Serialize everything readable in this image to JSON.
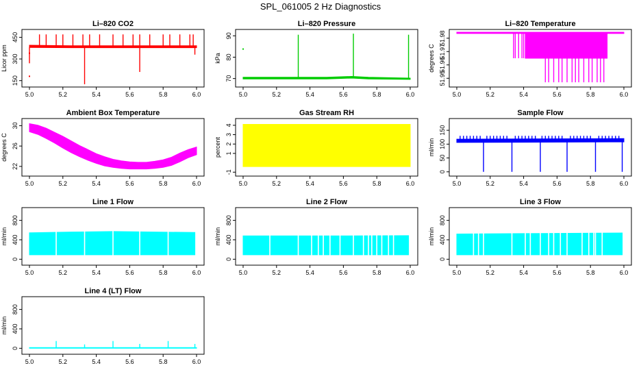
{
  "page": {
    "title": "SPL_061005  2 Hz Diagnostics"
  },
  "chart_data": [
    {
      "id": "co2",
      "type": "line",
      "title": "Li–820 CO2",
      "ylabel": "Licor ppm",
      "color": "#ff0000",
      "xlim": [
        5.0,
        6.0
      ],
      "ylim": [
        120,
        490
      ],
      "xticks": [
        "5.0",
        "5.2",
        "5.4",
        "5.6",
        "5.8",
        "6.0"
      ],
      "yticks": [
        "150",
        "300",
        "450"
      ],
      "series": [
        {
          "name": "baseline",
          "kind": "band",
          "x": [
            5.0,
            5.25,
            5.5,
            5.75,
            6.0
          ],
          "ymin": [
            380,
            378,
            378,
            378,
            378
          ],
          "ymax": [
            395,
            392,
            392,
            392,
            392
          ]
        },
        {
          "name": "spikes-up",
          "kind": "spikes",
          "base": 390,
          "x": [
            5.06,
            5.1,
            5.16,
            5.2,
            5.26,
            5.32,
            5.36,
            5.42,
            5.5,
            5.56,
            5.62,
            5.66,
            5.72,
            5.8,
            5.84,
            5.9,
            5.96,
            5.98
          ],
          "y": [
            470,
            470,
            470,
            470,
            470,
            470,
            470,
            470,
            470,
            470,
            470,
            470,
            470,
            470,
            470,
            470,
            470,
            470
          ]
        },
        {
          "name": "spikes-down",
          "kind": "spikes",
          "base": 380,
          "x": [
            5.0,
            5.33,
            5.66,
            5.99
          ],
          "y": [
            270,
            125,
            210,
            330
          ]
        },
        {
          "name": "outliers",
          "kind": "points",
          "x": [
            5.0,
            5.0
          ],
          "y": [
            180,
            340
          ]
        }
      ]
    },
    {
      "id": "pressure",
      "type": "line",
      "title": "Li–820 Pressure",
      "ylabel": "kPa",
      "color": "#00cc00",
      "xlim": [
        5.0,
        6.0
      ],
      "ylim": [
        67,
        92
      ],
      "xticks": [
        "5.0",
        "5.2",
        "5.4",
        "5.6",
        "5.8",
        "6.0"
      ],
      "yticks": [
        "70",
        "80",
        "90"
      ],
      "series": [
        {
          "name": "baseline",
          "kind": "band",
          "x": [
            5.0,
            5.25,
            5.5,
            5.65,
            5.75,
            6.0
          ],
          "ymin": [
            69.8,
            69.8,
            69.8,
            70.2,
            69.8,
            69.6
          ],
          "ymax": [
            70.6,
            70.6,
            70.6,
            71.0,
            70.6,
            70.2
          ]
        },
        {
          "name": "spikes-up",
          "kind": "spikes",
          "base": 70.3,
          "x": [
            5.33,
            5.66,
            5.99
          ],
          "y": [
            90.5,
            91.0,
            90.5
          ]
        },
        {
          "name": "outliers",
          "kind": "points",
          "x": [
            5.0
          ],
          "y": [
            83.8
          ]
        }
      ]
    },
    {
      "id": "temperature",
      "type": "line",
      "title": "Li–820 Temperature",
      "ylabel": "degrees C",
      "color": "#ff00ff",
      "xlim": [
        5.0,
        6.0
      ],
      "ylim": [
        51.945,
        51.985
      ],
      "xticks": [
        "5.0",
        "5.2",
        "5.4",
        "5.6",
        "5.8",
        "6.0"
      ],
      "yticks": [
        "51.95",
        "51.96",
        "51.97",
        "51.98"
      ],
      "series": [
        {
          "name": "baseline",
          "kind": "band",
          "x": [
            5.0,
            6.0
          ],
          "ymin": [
            51.9835,
            51.9835
          ],
          "ymax": [
            51.9845,
            51.9845
          ]
        },
        {
          "name": "block",
          "kind": "band",
          "x": [
            5.41,
            5.9
          ],
          "ymin": [
            51.965,
            51.965
          ],
          "ymax": [
            51.984,
            51.984
          ]
        },
        {
          "name": "drops-mid",
          "kind": "spikes",
          "base": 51.984,
          "x": [
            5.34,
            5.35,
            5.37,
            5.39,
            5.4
          ],
          "y": [
            51.965,
            51.965,
            51.965,
            51.965,
            51.965
          ]
        },
        {
          "name": "drops-deep",
          "kind": "spikes",
          "base": 51.965,
          "x": [
            5.53,
            5.55,
            5.58,
            5.61,
            5.63,
            5.66,
            5.69,
            5.71,
            5.73,
            5.76,
            5.79,
            5.81,
            5.84,
            5.86,
            5.88
          ],
          "y": [
            51.947,
            51.947,
            51.947,
            51.947,
            51.947,
            51.947,
            51.947,
            51.947,
            51.947,
            51.947,
            51.947,
            51.947,
            51.947,
            51.947,
            51.947
          ]
        }
      ]
    },
    {
      "id": "ambient",
      "type": "line",
      "title": "Ambient Box Temperature",
      "ylabel": "degrees C",
      "color": "#ff00ff",
      "xlim": [
        5.0,
        6.0
      ],
      "ylim": [
        20.5,
        31.0
      ],
      "xticks": [
        "5.0",
        "5.2",
        "5.4",
        "5.6",
        "5.8",
        "6.0"
      ],
      "yticks": [
        "22",
        "26",
        "30"
      ],
      "series": [
        {
          "name": "band",
          "kind": "band",
          "x": [
            5.0,
            5.05,
            5.1,
            5.15,
            5.2,
            5.25,
            5.3,
            5.35,
            5.4,
            5.45,
            5.5,
            5.55,
            5.6,
            5.65,
            5.7,
            5.75,
            5.8,
            5.85,
            5.9,
            5.95,
            6.0
          ],
          "ymin": [
            28.8,
            28.3,
            27.5,
            26.6,
            25.6,
            24.7,
            23.9,
            23.2,
            22.6,
            22.1,
            21.8,
            21.6,
            21.5,
            21.5,
            21.5,
            21.6,
            21.8,
            22.2,
            22.9,
            23.7,
            24.3
          ],
          "ymax": [
            30.4,
            30.1,
            29.5,
            28.7,
            27.9,
            27.0,
            26.1,
            25.3,
            24.5,
            23.9,
            23.4,
            23.1,
            22.9,
            22.8,
            22.8,
            23.0,
            23.3,
            23.8,
            24.6,
            25.3,
            25.8
          ]
        }
      ]
    },
    {
      "id": "rh",
      "type": "line",
      "title": "Gas Stream RH",
      "ylabel": "percent",
      "color": "#ffff00",
      "xlim": [
        5.0,
        6.0
      ],
      "ylim": [
        -1.2,
        4.5
      ],
      "xticks": [
        "5.0",
        "5.2",
        "5.4",
        "5.6",
        "5.8",
        "6.0"
      ],
      "yticks": [
        "-1",
        "1",
        "2",
        "3",
        "4"
      ],
      "series": [
        {
          "name": "band",
          "kind": "band",
          "x": [
            5.0,
            6.0
          ],
          "ymin": [
            -0.4,
            -0.4
          ],
          "ymax": [
            4.1,
            4.1
          ]
        }
      ]
    },
    {
      "id": "sample",
      "type": "line",
      "title": "Sample Flow",
      "ylabel": "ml/min",
      "color": "#0000ff",
      "xlim": [
        5.0,
        6.0
      ],
      "ylim": [
        -8,
        185
      ],
      "xticks": [
        "5.0",
        "5.2",
        "5.4",
        "5.6",
        "5.8",
        "6.0"
      ],
      "yticks": [
        "0",
        "50",
        "100",
        "150"
      ],
      "series": [
        {
          "name": "band",
          "kind": "band",
          "x": [
            5.0,
            6.0
          ],
          "ymin": [
            106,
            108
          ],
          "ymax": [
            118,
            120
          ]
        },
        {
          "name": "spikes-up",
          "kind": "spikes",
          "base": 118,
          "x": [
            5.02,
            5.04,
            5.06,
            5.08,
            5.1,
            5.12,
            5.14,
            5.18,
            5.2,
            5.22,
            5.24,
            5.26,
            5.28,
            5.3,
            5.35,
            5.37,
            5.39,
            5.41,
            5.43,
            5.45,
            5.47,
            5.51,
            5.53,
            5.55,
            5.57,
            5.59,
            5.61,
            5.63,
            5.68,
            5.7,
            5.72,
            5.74,
            5.76,
            5.78,
            5.8,
            5.85,
            5.87,
            5.89,
            5.91,
            5.93,
            5.95,
            5.97
          ],
          "y": [
            130,
            130,
            130,
            130,
            130,
            130,
            130,
            130,
            130,
            130,
            130,
            130,
            130,
            130,
            130,
            130,
            130,
            130,
            130,
            130,
            130,
            130,
            130,
            130,
            130,
            130,
            130,
            130,
            130,
            130,
            130,
            130,
            130,
            130,
            130,
            130,
            130,
            130,
            130,
            130,
            130,
            130
          ]
        },
        {
          "name": "spikes-down",
          "kind": "spikes",
          "base": 110,
          "x": [
            5.16,
            5.33,
            5.5,
            5.66,
            5.83,
            5.99
          ],
          "y": [
            0,
            0,
            0,
            0,
            0,
            0
          ]
        }
      ]
    },
    {
      "id": "line1",
      "type": "line",
      "title": "Line 1 Flow",
      "ylabel": "ml/min",
      "color": "#00ffff",
      "xlim": [
        5.0,
        6.0
      ],
      "ylim": [
        -80,
        1020
      ],
      "xticks": [
        "5.0",
        "5.2",
        "5.4",
        "5.6",
        "5.8",
        "6.0"
      ],
      "yticks": [
        "0",
        "400",
        "800"
      ],
      "series": [
        {
          "name": "band",
          "kind": "band",
          "x": [
            5.0,
            5.25,
            5.5,
            5.75,
            5.99
          ],
          "ymin": [
            90,
            90,
            90,
            90,
            90
          ],
          "ymax": [
            545,
            560,
            570,
            560,
            550
          ]
        },
        {
          "name": "gaps",
          "kind": "gaps",
          "x": [
            5.16,
            5.33,
            5.5,
            5.66,
            5.83
          ]
        }
      ]
    },
    {
      "id": "line2",
      "type": "line",
      "title": "Line 2 Flow",
      "ylabel": "ml/min",
      "color": "#00ffff",
      "xlim": [
        5.0,
        6.0
      ],
      "ylim": [
        -80,
        1020
      ],
      "xticks": [
        "5.0",
        "5.2",
        "5.4",
        "5.6",
        "5.8",
        "6.0"
      ],
      "yticks": [
        "0",
        "400",
        "800"
      ],
      "series": [
        {
          "name": "band",
          "kind": "band",
          "x": [
            5.0,
            5.5,
            5.99
          ],
          "ymin": [
            90,
            90,
            90
          ],
          "ymax": [
            480,
            480,
            485
          ]
        },
        {
          "name": "gaps",
          "kind": "gaps",
          "x": [
            5.16,
            5.33,
            5.41,
            5.45,
            5.48,
            5.52,
            5.58,
            5.66,
            5.72,
            5.75,
            5.77,
            5.8,
            5.83,
            5.87,
            5.9
          ]
        }
      ]
    },
    {
      "id": "line3",
      "type": "line",
      "title": "Line 3 Flow",
      "ylabel": "ml/min",
      "color": "#00ffff",
      "xlim": [
        5.0,
        6.0
      ],
      "ylim": [
        -80,
        1020
      ],
      "xticks": [
        "5.0",
        "5.2",
        "5.4",
        "5.6",
        "5.8",
        "6.0"
      ],
      "yticks": [
        "0",
        "400",
        "800"
      ],
      "series": [
        {
          "name": "band",
          "kind": "band",
          "x": [
            5.0,
            5.5,
            5.99
          ],
          "ymin": [
            90,
            90,
            90
          ],
          "ymax": [
            520,
            530,
            540
          ]
        },
        {
          "name": "gaps",
          "kind": "gaps",
          "x": [
            5.1,
            5.13,
            5.16,
            5.33,
            5.41,
            5.44,
            5.5,
            5.55,
            5.58,
            5.62,
            5.66,
            5.75,
            5.79,
            5.82,
            5.83,
            5.87
          ]
        }
      ]
    },
    {
      "id": "line4",
      "type": "line",
      "title": "Line 4 (LT) Flow",
      "ylabel": "ml/min",
      "color": "#00ffff",
      "xlim": [
        5.0,
        6.0
      ],
      "ylim": [
        -80,
        1020
      ],
      "xticks": [
        "5.0",
        "5.2",
        "5.4",
        "5.6",
        "5.8",
        "6.0"
      ],
      "yticks": [
        "0",
        "400",
        "800"
      ],
      "series": [
        {
          "name": "band",
          "kind": "band",
          "x": [
            5.0,
            6.0
          ],
          "ymin": [
            0,
            0
          ],
          "ymax": [
            15,
            15
          ]
        },
        {
          "name": "spikes-up",
          "kind": "spikes",
          "base": 10,
          "x": [
            5.16,
            5.33,
            5.5,
            5.66,
            5.83,
            5.99
          ],
          "y": [
            150,
            80,
            150,
            90,
            150,
            90
          ]
        }
      ]
    }
  ]
}
